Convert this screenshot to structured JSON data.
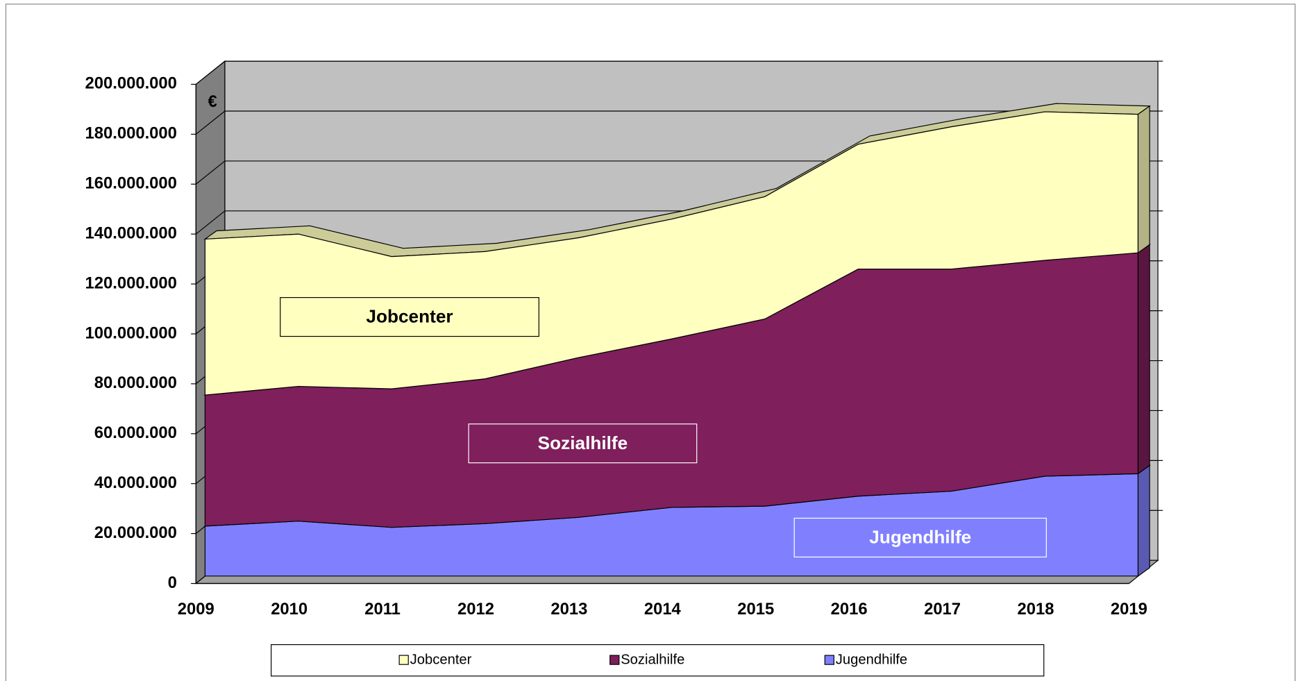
{
  "chart_data": {
    "type": "stacked_area_3d",
    "unit": "€",
    "categories": [
      "2009",
      "2010",
      "2011",
      "2012",
      "2013",
      "2014",
      "2015",
      "2016",
      "2017",
      "2018",
      "2019"
    ],
    "series": [
      {
        "name": "Jugendhilfe",
        "color": "#8080ff",
        "values": [
          20000000,
          22000000,
          19500000,
          21000000,
          23500000,
          27500000,
          28000000,
          32000000,
          34000000,
          40000000,
          41000000
        ]
      },
      {
        "name": "Sozialhilfe",
        "color": "#7f1f5c",
        "values": [
          52500000,
          54000000,
          55500000,
          58000000,
          64000000,
          67500000,
          75000000,
          91000000,
          89000000,
          86500000,
          88500000
        ]
      },
      {
        "name": "Jobcenter",
        "color": "#ffffc0",
        "values": [
          62500000,
          61000000,
          53000000,
          51000000,
          48000000,
          48000000,
          49000000,
          50000000,
          57000000,
          59500000,
          55500000
        ]
      }
    ],
    "ylim": [
      0,
      200000000
    ],
    "yticks": [
      0,
      {
        "value": 20000000,
        "label": "20.000.000"
      },
      {
        "value": 40000000,
        "label": "40.000.000"
      },
      {
        "value": 60000000,
        "label": "60.000.000"
      },
      {
        "value": 80000000,
        "label": "80.000.000"
      },
      {
        "value": 100000000,
        "label": "100.000.000"
      },
      {
        "value": 120000000,
        "label": "120.000.000"
      },
      {
        "value": 140000000,
        "label": "140.000.000"
      },
      {
        "value": 160000000,
        "label": "160.000.000"
      },
      {
        "value": 180000000,
        "label": "180.000.000"
      },
      {
        "value": 200000000,
        "label": "200.000.000"
      }
    ],
    "grid": true
  }
}
